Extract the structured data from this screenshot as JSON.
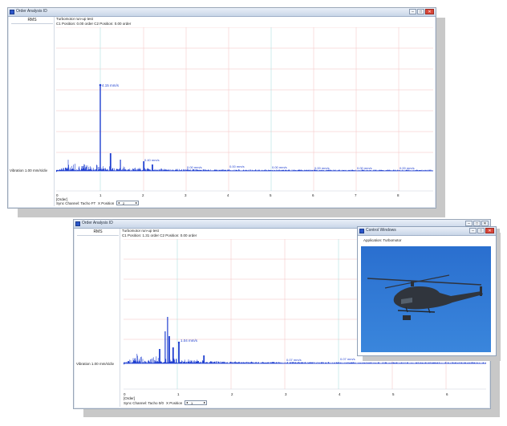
{
  "colors": {
    "accent": "#1f3fd0",
    "grid_red": "#f0b0b0",
    "grid_cyan": "#9fd9dd",
    "sky": "#2f78d3"
  },
  "window1": {
    "title": "Order Analysis ID",
    "rms_label": "RMS",
    "header_line1": "Turbomotor run-up test",
    "header_line2": "C1 Position: 0.00 order      C2 Position: 0.00 order",
    "y_label": "Vibration 1.00 mm/s/div",
    "peak_labels": [
      "4.15 mm/s",
      "0.40 mm/s",
      "0.00 mm/s",
      "0.00 mm/s",
      "0.00 mm/s",
      "0.00 mm/s",
      "0.00 mm/s",
      "0.00 mm/s"
    ],
    "x_ticks": [
      "0",
      "1",
      "2",
      "3",
      "4",
      "5",
      "6",
      "7",
      "8"
    ],
    "x_unit": "[Order]",
    "sync_label": "Sync Channel: Tacho FT",
    "x_position_label": "X Position",
    "x_position_value": "2"
  },
  "window2": {
    "title": "Order Analysis ID",
    "rms_label": "RMS",
    "header_line1": "Turbomotor run-up test",
    "header_line2": "C1 Position: 1.31 order      C2 Position: 0.00 order",
    "y_label": "Vibration 1.00 mm/s/div",
    "peak_labels": [
      "1.04 mm/s",
      "0.07 mm/s",
      "0.07 mm/s",
      "0.03 mm/s",
      "0.03 mm/s"
    ],
    "x_ticks": [
      "0",
      "1",
      "2",
      "3",
      "4",
      "5",
      "6"
    ],
    "x_unit": "[Order]",
    "sync_label": "Sync Channel: Tacho 0/0",
    "x_position_label": "X Position",
    "x_position_value": "1"
  },
  "control_window": {
    "title": "Control Windows",
    "application_label": "Application: Turbomotor"
  },
  "titlebar_icons": [
    "minimize-icon",
    "maximize-icon",
    "close-icon"
  ]
}
